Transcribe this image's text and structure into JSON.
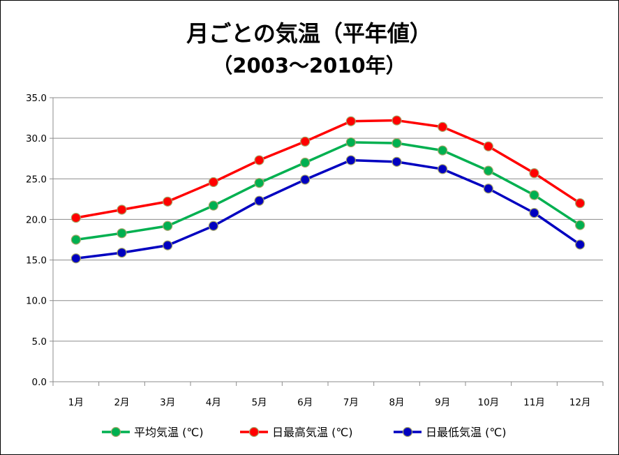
{
  "chart_data": {
    "type": "line",
    "title": "月ごとの気温（平年値）",
    "subtitle": "（2003～2010年）",
    "xlabel": "",
    "ylabel": "",
    "categories": [
      "1月",
      "2月",
      "3月",
      "4月",
      "5月",
      "6月",
      "7月",
      "8月",
      "9月",
      "10月",
      "11月",
      "12月"
    ],
    "ylim": [
      0,
      35
    ],
    "yticks": [
      "0.0",
      "5.0",
      "10.0",
      "15.0",
      "20.0",
      "25.0",
      "30.0",
      "35.0"
    ],
    "grid": true,
    "legend_position": "bottom",
    "series": [
      {
        "name": "平均気温 (℃)",
        "color": "#00b050",
        "values": [
          17.5,
          18.3,
          19.2,
          21.7,
          24.5,
          27.0,
          29.5,
          29.4,
          28.5,
          26.0,
          23.0,
          19.3
        ]
      },
      {
        "name": "日最高気温 (℃)",
        "color": "#ff0000",
        "values": [
          20.2,
          21.2,
          22.2,
          24.6,
          27.3,
          29.6,
          32.1,
          32.2,
          31.4,
          29.0,
          25.7,
          22.0
        ]
      },
      {
        "name": "日最低気温 (℃)",
        "color": "#0000c0",
        "values": [
          15.2,
          15.9,
          16.8,
          19.2,
          22.3,
          24.9,
          27.3,
          27.1,
          26.2,
          23.8,
          20.8,
          16.9
        ]
      }
    ]
  }
}
